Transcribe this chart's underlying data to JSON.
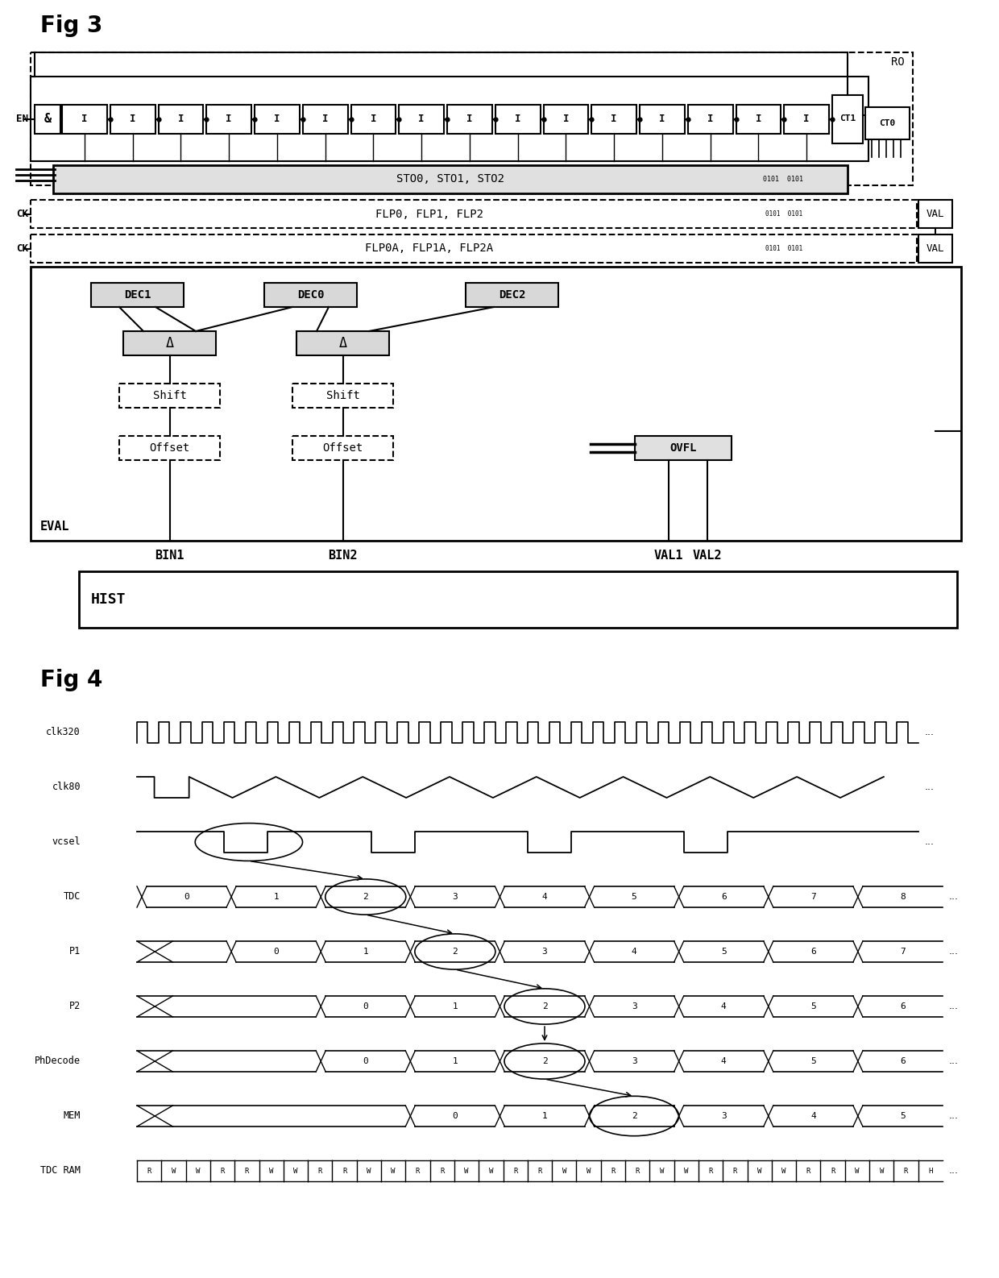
{
  "fig_title_3": "Fig 3",
  "fig_title_4": "Fig 4",
  "bg_color": "#ffffff",
  "fig3": {
    "ro_label": "RO",
    "en_label": "EN",
    "ck_label": "CK",
    "sto_label": "STO0, STO1, STO2",
    "flp_label": "FLP0, FLP1, FLP2",
    "flpa_label": "FLP0A, FLP1A, FLP2A",
    "val_label": "VAL",
    "eval_label": "EVAL",
    "dec1_label": "DEC1",
    "dec0_label": "DEC0",
    "dec2_label": "DEC2",
    "delta_label": "Δ",
    "shift_label": "Shift",
    "offset_label": "Offset",
    "ovfl_label": "OVFL",
    "bin1_label": "BIN1",
    "bin2_label": "BIN2",
    "val1_label": "VAL1",
    "val2_label": "VAL2",
    "hist_label": "HIST",
    "ct1_label": "CT1",
    "ct0_label": "CT0",
    "and_label": "&",
    "n_inverters": 16
  },
  "fig4": {
    "signals": [
      "clk320",
      "clk80",
      "vcsel",
      "TDC",
      "P1",
      "P2",
      "PhDecode",
      "MEM",
      "TDC RAM"
    ],
    "tdc_values": [
      "0",
      "1",
      "2",
      "3",
      "4",
      "5",
      "6",
      "7",
      "8"
    ],
    "p1_values": [
      "0",
      "1",
      "2",
      "3",
      "4",
      "5",
      "6",
      "7"
    ],
    "p2_values": [
      "0",
      "1",
      "2",
      "3",
      "4",
      "5",
      "6"
    ],
    "phdecode_values": [
      "0",
      "1",
      "2",
      "3",
      "4",
      "5",
      "6"
    ],
    "mem_values": [
      "0",
      "1",
      "2",
      "3",
      "4",
      "5"
    ],
    "tdcram_pattern": [
      "R",
      "W",
      "W",
      "R",
      "R",
      "W",
      "W",
      "R",
      "R",
      "W",
      "W",
      "R",
      "R",
      "W",
      "W",
      "R",
      "R",
      "W",
      "W",
      "R",
      "R",
      "W",
      "W",
      "R",
      "R",
      "W",
      "W",
      "R",
      "R",
      "W",
      "W",
      "R",
      "H"
    ]
  }
}
